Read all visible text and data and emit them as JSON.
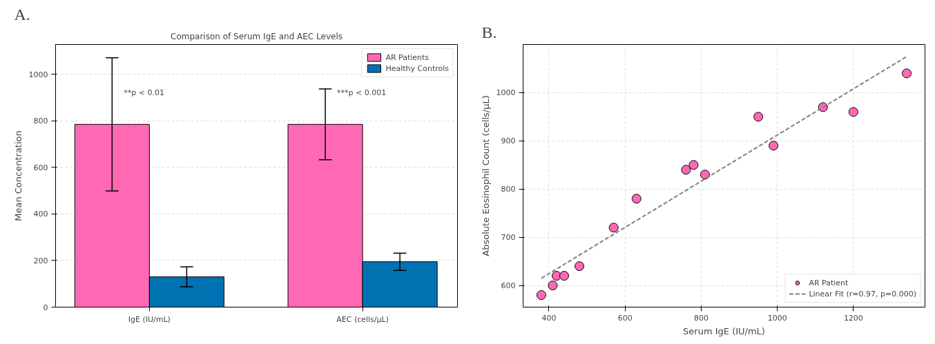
{
  "chart_data": [
    {
      "type": "bar",
      "title": "Comparison of Serum IgE and AEC Levels",
      "ylabel": "Mean Concentration",
      "categories": [
        "IgE (IU/mL)",
        "AEC (cells/μL)"
      ],
      "series": [
        {
          "name": "AR Patients",
          "color": "#ff69b4",
          "values": [
            785,
            785
          ],
          "errors": [
            286,
            152
          ]
        },
        {
          "name": "Healthy Controls",
          "color": "#0072b2",
          "values": [
            130,
            195
          ],
          "errors": [
            43,
            37
          ]
        }
      ],
      "ylim": [
        0,
        1128
      ],
      "yticks": [
        0,
        200,
        400,
        600,
        800,
        1000
      ],
      "grid": "y",
      "legend": "top right",
      "annotations": [
        "A.",
        "**p < 0.01",
        "***p < 0.001"
      ]
    },
    {
      "type": "scatter",
      "xlabel": "Serum IgE (IU/mL)",
      "ylabel": "Absolute Eosinophil Count (cells/μL)",
      "series": [
        {
          "name": "AR Patient",
          "color": "#ff69b4",
          "marker": "circle",
          "x": [
            380,
            410,
            420,
            440,
            480,
            570,
            630,
            760,
            780,
            810,
            950,
            990,
            1120,
            1200,
            1340
          ],
          "values": [
            580,
            600,
            620,
            620,
            640,
            720,
            780,
            840,
            850,
            830,
            950,
            890,
            970,
            960,
            1040
          ]
        },
        {
          "name": "Linear Fit (r=0.97, p=0.000)",
          "type": "line",
          "line_style": "dashed",
          "color": "#808080",
          "x": [
            380,
            1340
          ],
          "values": [
            615,
            1075
          ]
        }
      ],
      "xlim": [
        332,
        1388
      ],
      "xticks": [
        400,
        600,
        800,
        1000,
        1200
      ],
      "ylim": [
        555,
        1100
      ],
      "yticks": [
        600,
        700,
        800,
        900,
        1000
      ],
      "grid": true,
      "legend": "bottom right",
      "annotations": [
        "B."
      ]
    }
  ]
}
